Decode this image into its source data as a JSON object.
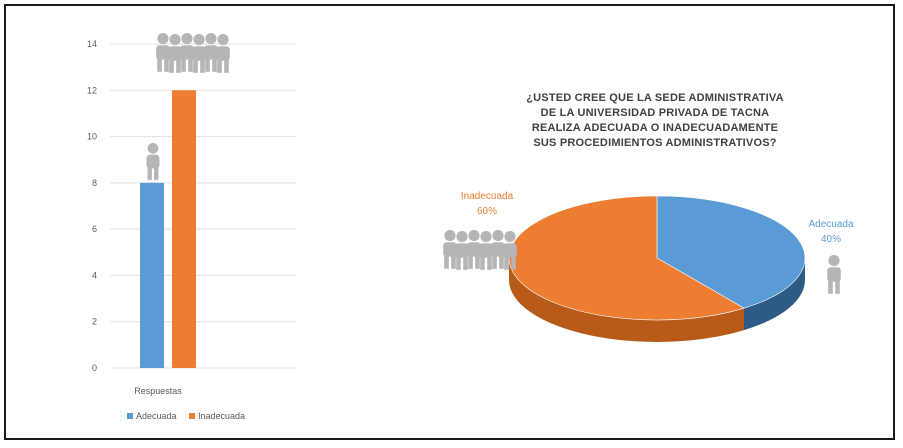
{
  "colors": {
    "adecuada": "#5b9bd5",
    "adecuada_side": "#2e5b86",
    "inadecuada": "#ed7d31",
    "inadecuada_side": "#b85a18",
    "grid": "#e3e3e3",
    "people": "#b5b5b5"
  },
  "chart_data": [
    {
      "type": "bar",
      "categories": [
        "Respuestas"
      ],
      "series": [
        {
          "name": "Adecuada",
          "values": [
            8
          ]
        },
        {
          "name": "Inadecuada",
          "values": [
            12
          ]
        }
      ],
      "ylim": [
        0,
        14
      ],
      "yticks": [
        0,
        2,
        4,
        6,
        8,
        10,
        12,
        14
      ],
      "grid": true,
      "legend": "bottom",
      "title": "",
      "xlabel": "",
      "ylabel": "",
      "icons": [
        "single-person-icon",
        "group-of-people-icon"
      ]
    },
    {
      "type": "pie",
      "title_lines": [
        "¿USTED CREE QUE LA SEDE ADMINISTRATIVA",
        "DE LA UNIVERSIDAD PRIVADA DE TACNA",
        "REALIZA ADECUADA O INADECUADAMENTE",
        "SUS PROCEDIMIENTOS ADMINISTRATIVOS?"
      ],
      "slices": [
        {
          "label": "Adecuada",
          "value": 40,
          "pct_label": "40%"
        },
        {
          "label": "Inadecuada",
          "value": 60,
          "pct_label": "60%"
        }
      ],
      "style": "3d",
      "icons": [
        "single-person-icon",
        "group-of-people-icon"
      ]
    }
  ]
}
